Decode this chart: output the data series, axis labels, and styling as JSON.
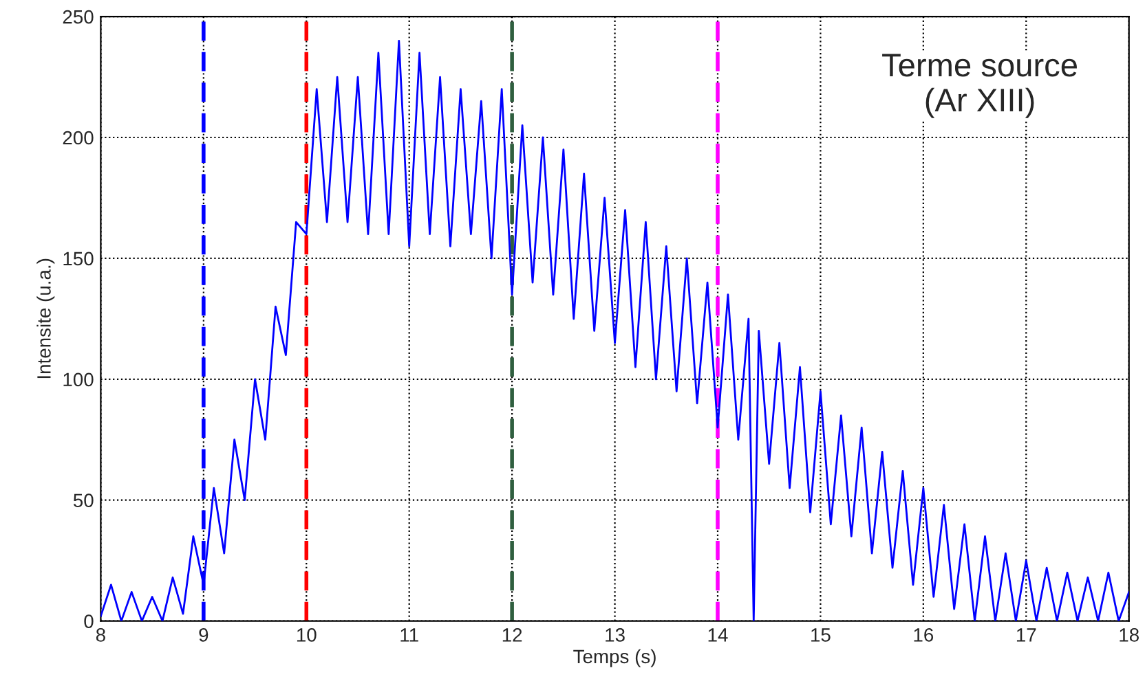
{
  "chart_data": {
    "type": "line",
    "xlabel": "Temps (s)",
    "ylabel": "Intensite (u.a.)",
    "annotations": [
      "Terme source\n(Ar XIII)"
    ],
    "series": [
      {
        "color": "#0000ff",
        "x": [
          8.0,
          8.1,
          8.2,
          8.3,
          8.4,
          8.5,
          8.6,
          8.7,
          8.8,
          8.9,
          9.0,
          9.1,
          9.2,
          9.3,
          9.4,
          9.5,
          9.6,
          9.7,
          9.8,
          9.9,
          10.0,
          10.1,
          10.2,
          10.3,
          10.4,
          10.5,
          10.6,
          10.7,
          10.8,
          10.9,
          11.0,
          11.1,
          11.2,
          11.3,
          11.4,
          11.5,
          11.6,
          11.7,
          11.8,
          11.9,
          12.0,
          12.1,
          12.2,
          12.3,
          12.4,
          12.5,
          12.6,
          12.7,
          12.8,
          12.9,
          13.0,
          13.1,
          13.2,
          13.3,
          13.4,
          13.5,
          13.6,
          13.7,
          13.8,
          13.9,
          14.0,
          14.1,
          14.2,
          14.3,
          14.35,
          14.4,
          14.5,
          14.6,
          14.7,
          14.8,
          14.9,
          15.0,
          15.1,
          15.2,
          15.3,
          15.4,
          15.5,
          15.6,
          15.7,
          15.8,
          15.9,
          16.0,
          16.1,
          16.2,
          16.3,
          16.4,
          16.5,
          16.6,
          16.7,
          16.8,
          16.9,
          17.0,
          17.1,
          17.2,
          17.3,
          17.4,
          17.5,
          17.6,
          17.7,
          17.8,
          17.9,
          18.0
        ],
        "values": [
          2,
          15,
          0,
          12,
          0,
          10,
          0,
          18,
          3,
          35,
          15,
          55,
          28,
          75,
          50,
          100,
          75,
          130,
          110,
          165,
          160,
          220,
          165,
          225,
          165,
          225,
          160,
          235,
          160,
          240,
          155,
          235,
          160,
          225,
          155,
          220,
          160,
          215,
          150,
          220,
          135,
          205,
          140,
          200,
          135,
          195,
          125,
          185,
          120,
          175,
          115,
          170,
          105,
          165,
          100,
          155,
          95,
          150,
          90,
          140,
          80,
          135,
          75,
          125,
          0,
          120,
          65,
          115,
          55,
          105,
          45,
          95,
          40,
          85,
          35,
          80,
          28,
          70,
          22,
          62,
          15,
          55,
          10,
          48,
          5,
          40,
          0,
          35,
          0,
          28,
          0,
          25,
          0,
          22,
          0,
          20,
          0,
          18,
          0,
          20,
          0,
          12
        ]
      }
    ],
    "ref_lines": [
      {
        "axis": "x",
        "value": 9,
        "color": "#0000ff",
        "line_style": "dashed"
      },
      {
        "axis": "x",
        "value": 10,
        "color": "#ff0000",
        "line_style": "dashed"
      },
      {
        "axis": "x",
        "value": 12,
        "color": "#2f5f3f",
        "line_style": "dashed"
      },
      {
        "axis": "x",
        "value": 14,
        "color": "#ff00ff",
        "line_style": "dashed"
      }
    ],
    "xlim": [
      8,
      18
    ],
    "xticks": [
      8,
      9,
      10,
      11,
      12,
      13,
      14,
      15,
      16,
      17,
      18
    ],
    "ylim": [
      0,
      250
    ],
    "yticks": [
      0,
      50,
      100,
      150,
      200,
      250
    ],
    "grid": true,
    "legend": false,
    "marker": "none",
    "line_style": "solid"
  }
}
